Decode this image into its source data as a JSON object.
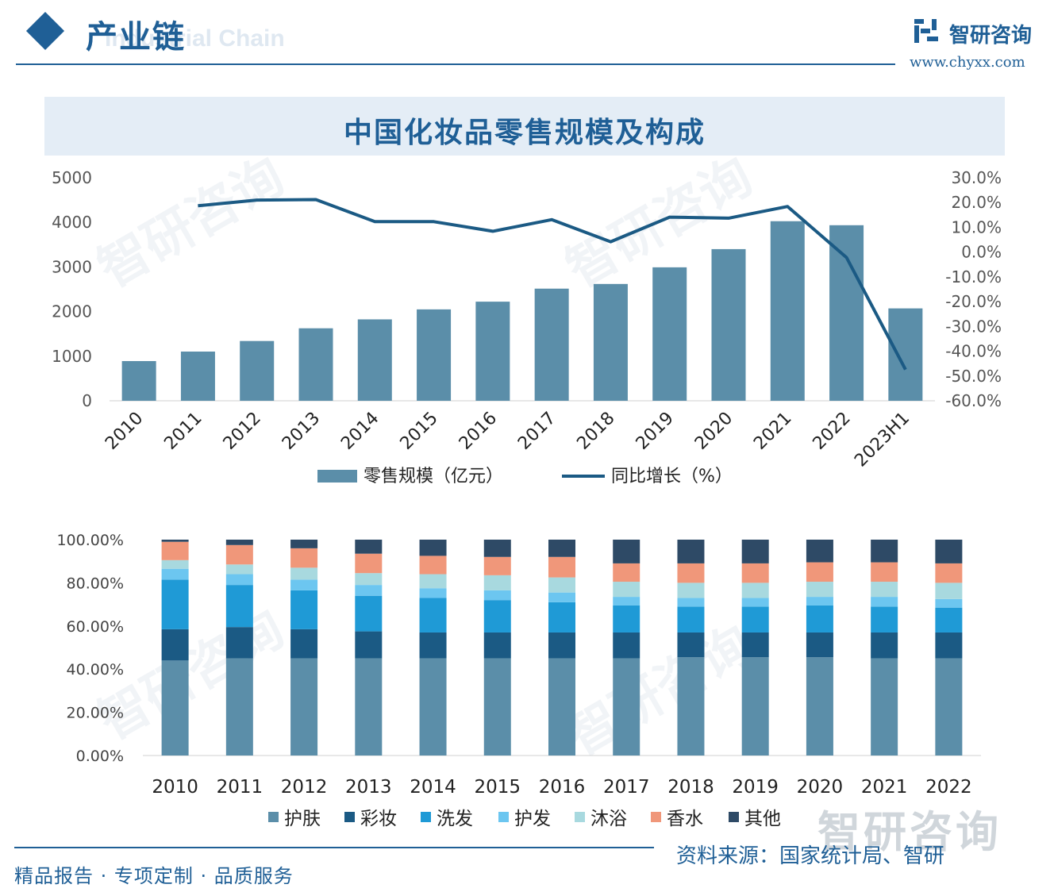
{
  "header": {
    "section_title": "产业链",
    "section_subtitle": "Industrial Chain",
    "logo_name": "智研咨询",
    "logo_url": "www.chyxx.com"
  },
  "title": "中国化妆品零售规模及构成",
  "colors": {
    "brand": "#1f5f96",
    "bar": "#5b8ea9",
    "line": "#1b5a84",
    "stack": [
      "#5b8ea9",
      "#1b5a84",
      "#1f9ad6",
      "#6cc6f0",
      "#a8d9df",
      "#f0977a",
      "#2e4a66"
    ]
  },
  "chart_data": [
    {
      "type": "bar",
      "categories": [
        "2010",
        "2011",
        "2012",
        "2013",
        "2014",
        "2015",
        "2016",
        "2017",
        "2018",
        "2019",
        "2020",
        "2021",
        "2022",
        "2023H1"
      ],
      "series": [
        {
          "name": "零售规模（亿元）",
          "type": "bar",
          "axis": "left",
          "values": [
            890,
            1103,
            1340,
            1625,
            1825,
            2049,
            2222,
            2514,
            2619,
            2992,
            3400,
            4026,
            3936,
            2071
          ]
        },
        {
          "name": "同比增长（%）",
          "type": "line",
          "axis": "right",
          "values": [
            null,
            18.7,
            21.0,
            21.2,
            12.3,
            12.3,
            8.4,
            13.1,
            4.2,
            14.1,
            13.7,
            18.4,
            -2.2,
            -47.4
          ]
        }
      ],
      "yticks_left": [
        "0",
        "1000",
        "2000",
        "3000",
        "4000",
        "5000"
      ],
      "ylim_left": [
        0,
        5000
      ],
      "yticks_right": [
        "-60.0%",
        "-50.0%",
        "-40.0%",
        "-30.0%",
        "-20.0%",
        "-10.0%",
        "0.0%",
        "10.0%",
        "20.0%",
        "30.0%"
      ],
      "ylim_right": [
        -60,
        30
      ],
      "legend": [
        "零售规模（亿元）",
        "同比增长（%）"
      ],
      "legend_position": "bottom",
      "grid": false
    },
    {
      "type": "bar",
      "stacked": true,
      "percent": true,
      "categories": [
        "2010",
        "2011",
        "2012",
        "2013",
        "2014",
        "2015",
        "2016",
        "2017",
        "2018",
        "2019",
        "2020",
        "2021",
        "2022"
      ],
      "series": [
        {
          "name": "护肤",
          "values": [
            44.0,
            45.0,
            45.0,
            45.0,
            45.0,
            45.0,
            45.0,
            45.0,
            45.5,
            45.5,
            45.5,
            45.0,
            45.0
          ]
        },
        {
          "name": "彩妆",
          "values": [
            14.5,
            14.5,
            13.5,
            12.5,
            12.0,
            12.0,
            12.0,
            12.0,
            11.5,
            11.5,
            11.5,
            12.0,
            12.0
          ]
        },
        {
          "name": "洗发",
          "values": [
            23.0,
            19.5,
            18.0,
            16.5,
            16.0,
            15.0,
            14.0,
            12.5,
            12.0,
            12.0,
            12.5,
            12.0,
            11.5
          ]
        },
        {
          "name": "护发",
          "values": [
            5.0,
            5.0,
            5.0,
            5.0,
            4.5,
            4.5,
            4.5,
            4.0,
            4.0,
            4.0,
            4.0,
            4.5,
            4.0
          ]
        },
        {
          "name": "沐浴",
          "values": [
            4.0,
            4.5,
            5.5,
            5.5,
            6.5,
            7.0,
            7.0,
            7.0,
            7.0,
            7.0,
            7.0,
            7.0,
            7.5
          ]
        },
        {
          "name": "香水",
          "values": [
            8.5,
            9.0,
            9.0,
            9.0,
            8.5,
            8.5,
            9.5,
            8.5,
            9.0,
            9.0,
            9.0,
            9.0,
            9.0
          ]
        },
        {
          "name": "其他",
          "values": [
            1.0,
            2.5,
            4.0,
            6.5,
            7.5,
            8.0,
            8.0,
            11.0,
            11.0,
            11.0,
            10.5,
            10.5,
            11.0
          ]
        }
      ],
      "yticks": [
        "0.00%",
        "20.00%",
        "40.00%",
        "60.00%",
        "80.00%",
        "100.00%"
      ],
      "ylim": [
        0,
        100
      ],
      "legend": [
        "护肤",
        "彩妆",
        "洗发",
        "护发",
        "沐浴",
        "香水",
        "其他"
      ],
      "legend_position": "bottom",
      "grid": false
    }
  ],
  "watermark": "智研咨询",
  "footer": {
    "tagline": "精品报告 · 专项定制 · 品质服务",
    "source": "资料来源：国家统计局、智研"
  }
}
